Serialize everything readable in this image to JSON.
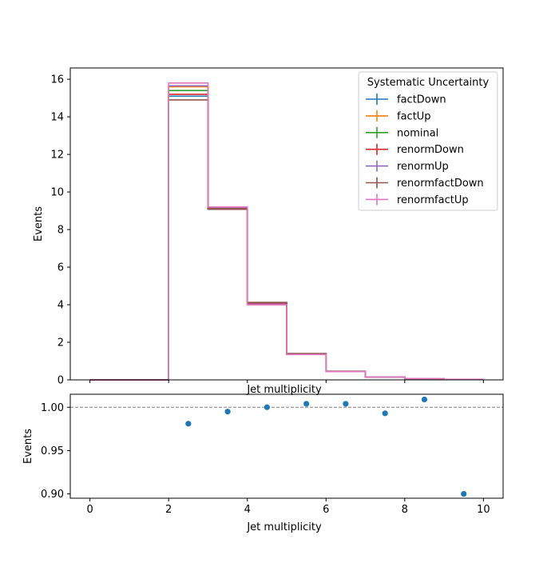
{
  "chart_data": [
    {
      "type": "line",
      "style": "step-histogram",
      "xlabel": "Jet multiplicity",
      "ylabel": "Events",
      "xlim": [
        -0.5,
        10.5
      ],
      "ylim": [
        0,
        16.6
      ],
      "xticks": [
        0,
        2,
        4,
        6,
        8,
        10
      ],
      "yticks": [
        0,
        2,
        4,
        6,
        8,
        10,
        12,
        14,
        16
      ],
      "bin_edges": [
        0,
        1,
        2,
        3,
        4,
        5,
        6,
        7,
        8,
        9,
        10
      ],
      "legend": {
        "title": "Systematic Uncertainty",
        "placement": "top-right"
      },
      "series": [
        {
          "name": "factDown",
          "color": "#1f77b4",
          "values": [
            0,
            0,
            15.1,
            9.15,
            4.05,
            1.38,
            0.45,
            0.15,
            0.07,
            0.03
          ]
        },
        {
          "name": "factUp",
          "color": "#ff7f0e",
          "values": [
            0,
            0,
            15.6,
            9.1,
            4.0,
            1.36,
            0.44,
            0.15,
            0.07,
            0.03
          ]
        },
        {
          "name": "nominal",
          "color": "#2ca02c",
          "values": [
            0,
            0,
            15.4,
            9.12,
            4.05,
            1.37,
            0.45,
            0.15,
            0.07,
            0.03
          ]
        },
        {
          "name": "renormDown",
          "color": "#d62728",
          "values": [
            0,
            0,
            15.2,
            9.1,
            4.1,
            1.39,
            0.45,
            0.15,
            0.07,
            0.03
          ]
        },
        {
          "name": "renormUp",
          "color": "#9467bd",
          "values": [
            0,
            0,
            15.65,
            9.18,
            4.03,
            1.36,
            0.45,
            0.15,
            0.07,
            0.03
          ]
        },
        {
          "name": "renormfactDown",
          "color": "#8c564b",
          "values": [
            0,
            0,
            14.9,
            9.08,
            4.12,
            1.4,
            0.46,
            0.15,
            0.07,
            0.03
          ]
        },
        {
          "name": "renormfactUp",
          "color": "#e377c2",
          "values": [
            0,
            0,
            15.8,
            9.2,
            4.0,
            1.35,
            0.44,
            0.15,
            0.07,
            0.03
          ]
        }
      ]
    },
    {
      "type": "scatter",
      "xlabel": "Jet multiplicity",
      "ylabel": "Events",
      "xlim": [
        -0.5,
        10.5
      ],
      "ylim": [
        0.895,
        1.015
      ],
      "xticks": [
        0,
        2,
        4,
        6,
        8,
        10
      ],
      "yticks": [
        0.9,
        0.95,
        1.0
      ],
      "ytick_labels": [
        "0.90",
        "0.95",
        "1.00"
      ],
      "reference_line": 1.0,
      "color": "#1f77b4",
      "x": [
        2.5,
        3.5,
        4.5,
        5.5,
        6.5,
        7.5,
        8.5,
        9.5
      ],
      "y": [
        0.981,
        0.995,
        1.0,
        1.004,
        1.004,
        0.993,
        1.009,
        0.9
      ]
    }
  ]
}
